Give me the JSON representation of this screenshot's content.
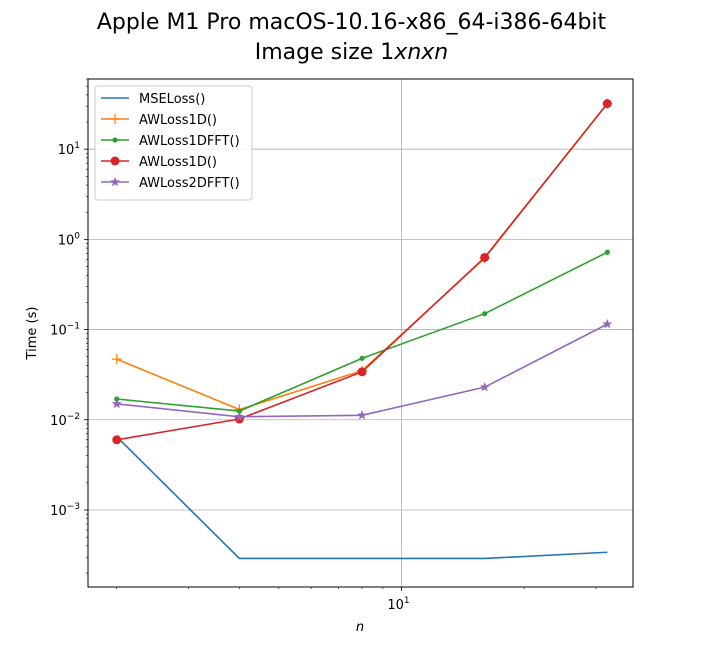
{
  "chart_data": {
    "type": "line",
    "title": "Apple M1 Pro macOS-10.16-x86_64-i386-64bit",
    "subtitle_prefix": "Image size 1",
    "subtitle_italic": "xnxn",
    "xlabel": "n",
    "ylabel": "Time (s)",
    "xscale": "log",
    "yscale": "log",
    "xlim": [
      1.7,
      37
    ],
    "ylim": [
      0.00014,
      60
    ],
    "grid": true,
    "legend_position": "top-left",
    "x": [
      2,
      4,
      8,
      16,
      32
    ],
    "x_ticks": [
      {
        "value": 10,
        "base": "10",
        "exp": "1"
      }
    ],
    "y_ticks": [
      {
        "value": 0.001,
        "base": "10",
        "exp": "−3"
      },
      {
        "value": 0.01,
        "base": "10",
        "exp": "−2"
      },
      {
        "value": 0.1,
        "base": "10",
        "exp": "−1"
      },
      {
        "value": 1,
        "base": "10",
        "exp": "0"
      },
      {
        "value": 10,
        "base": "10",
        "exp": "1"
      }
    ],
    "series": [
      {
        "name": "MSELoss()",
        "color": "#1f77b4",
        "marker": "none",
        "values": [
          0.0065,
          0.00029,
          0.00029,
          0.00029,
          0.00034
        ]
      },
      {
        "name": "AWLoss1D()",
        "color": "#ff7f0e",
        "marker": "plus",
        "values": [
          0.047,
          0.013,
          0.035,
          0.62,
          32
        ]
      },
      {
        "name": "AWLoss1DFFT()",
        "color": "#2ca02c",
        "marker": "dot",
        "values": [
          0.017,
          0.0125,
          0.048,
          0.15,
          0.72
        ]
      },
      {
        "name": "AWLoss1D()",
        "color": "#d62728",
        "marker": "circle",
        "values": [
          0.006,
          0.0102,
          0.034,
          0.63,
          32
        ]
      },
      {
        "name": "AWLoss2DFFT()",
        "color": "#9467bd",
        "marker": "star",
        "values": [
          0.015,
          0.0108,
          0.0112,
          0.023,
          0.115
        ]
      }
    ]
  }
}
